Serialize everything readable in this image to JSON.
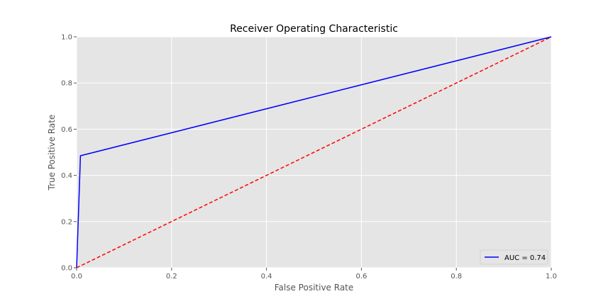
{
  "chart_data": {
    "type": "line",
    "title": "Receiver Operating Characteristic",
    "xlabel": "False Positive Rate",
    "ylabel": "True Positive Rate",
    "xlim": [
      0,
      1
    ],
    "ylim": [
      0,
      1
    ],
    "xticks": [
      "0.0",
      "0.2",
      "0.4",
      "0.6",
      "0.8",
      "1.0"
    ],
    "yticks": [
      "0.0",
      "0.2",
      "0.4",
      "0.6",
      "0.8",
      "1.0"
    ],
    "xtick_values": [
      0,
      0.2,
      0.4,
      0.6,
      0.8,
      1.0
    ],
    "ytick_values": [
      0,
      0.2,
      0.4,
      0.6,
      0.8,
      1.0
    ],
    "grid": true,
    "legend_position": "bottom-right",
    "series": [
      {
        "name": "AUC = 0.74",
        "color": "#0000ff",
        "style": "solid",
        "x": [
          0,
          0.008,
          1.0
        ],
        "y": [
          0,
          0.485,
          1.0
        ]
      },
      {
        "color": "#ff0000",
        "style": "dashed",
        "x": [
          0,
          1
        ],
        "y": [
          0,
          1
        ]
      }
    ]
  }
}
